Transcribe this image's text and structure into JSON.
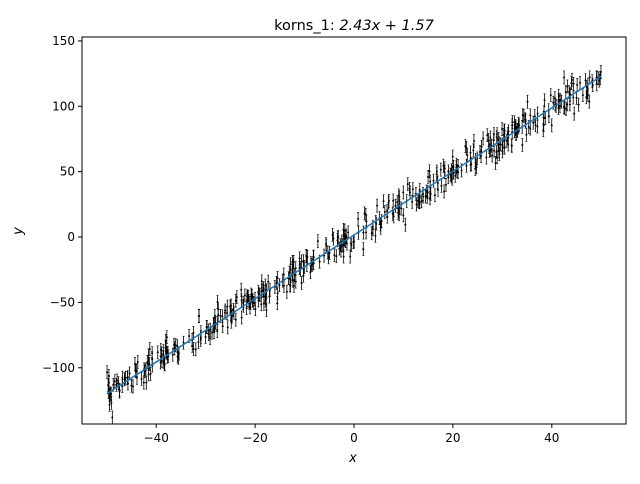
{
  "chart_data": {
    "type": "scatter",
    "title_prefix": "korns_1: ",
    "title_math": "2.43x + 1.57",
    "xlabel": "x",
    "ylabel": "y",
    "xlim": [
      -55,
      55
    ],
    "ylim": [
      -143,
      153
    ],
    "xticks": [
      -40,
      -20,
      0,
      20,
      40
    ],
    "yticks": [
      -100,
      -50,
      0,
      50,
      100,
      150
    ],
    "xtick_labels": [
      "−40",
      "−20",
      "0",
      "20",
      "40"
    ],
    "ytick_labels": [
      "−100",
      "−50",
      "0",
      "50",
      "100",
      "150"
    ],
    "grid": false,
    "legend": "none",
    "fit_line": {
      "slope": 2.43,
      "intercept": 1.57,
      "x_range": [
        -50,
        50
      ],
      "color": "#1f77b4"
    },
    "series": [
      {
        "type": "errorbar-scatter",
        "n_points": 500,
        "x_range": [
          -50,
          50
        ],
        "y_error": 5,
        "noise_sd": 6,
        "color": "#000000"
      }
    ]
  }
}
